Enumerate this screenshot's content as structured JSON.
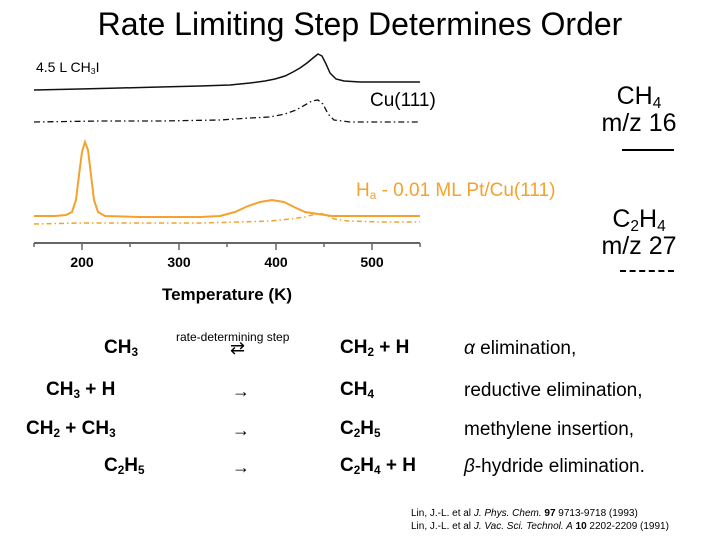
{
  "title": "Rate Limiting Step Determines Order",
  "dose_label": {
    "prefix": "4.5 L CH",
    "sub": "3",
    "suffix": "I"
  },
  "spectra": {
    "cu_label": "Cu(111)",
    "pt_label": {
      "prefix": "H",
      "sub": "a",
      "suffix": " - 0.01 ML Pt/Cu(111)"
    },
    "colors": {
      "cu": "#111111",
      "pt": "#f4a22d"
    }
  },
  "legend": {
    "ch4": {
      "formula_prefix": "CH",
      "formula_sub": "4",
      "mz": "m/z 16"
    },
    "c2h4": {
      "formula_a": "C",
      "sub_a": "2",
      "formula_b": "H",
      "sub_b": "4",
      "mz": "m/z 27"
    }
  },
  "axis": {
    "ticks": [
      "200",
      "300",
      "400",
      "500"
    ],
    "xlabel": "Temperature (K)"
  },
  "reactions": {
    "rate_label": "rate-determining step",
    "rows": [
      {
        "lhs": [
          "CH",
          "3",
          "",
          ""
        ],
        "arrow": "⇄",
        "rhs": [
          "CH",
          "2",
          " + H",
          ""
        ],
        "mech_greek": "α",
        "mech": " elimination,"
      },
      {
        "lhs": [
          "CH",
          "3",
          " + H",
          ""
        ],
        "arrow": "→",
        "rhs": [
          "CH",
          "4",
          "",
          ""
        ],
        "mech_greek": "",
        "mech": "reductive elimination,"
      },
      {
        "lhs": [
          "CH",
          "2",
          " + CH",
          "3"
        ],
        "arrow": "→",
        "rhs": [
          "C",
          "2",
          "H",
          "5"
        ],
        "mech_greek": "",
        "mech": "methylene insertion,"
      },
      {
        "lhs": [
          "C",
          "2",
          "H",
          "5"
        ],
        "arrow": "→",
        "rhs": [
          "C",
          "2",
          "H",
          "4"
        ],
        "rhs_tail": " + H",
        "mech_greek": "β",
        "mech": "-hydride elimination."
      }
    ]
  },
  "references": [
    {
      "authors": "Lin, J.-L. et al ",
      "journal": "J. Phys. Chem.",
      "volume": " 97",
      "pages": " 9713-9718 (1993)"
    },
    {
      "authors": "Lin, J.-L. et al ",
      "journal": "J. Vac. Sci. Technol. A",
      "volume": " 10",
      "pages": " 2202-2209 (1991)"
    }
  ]
}
